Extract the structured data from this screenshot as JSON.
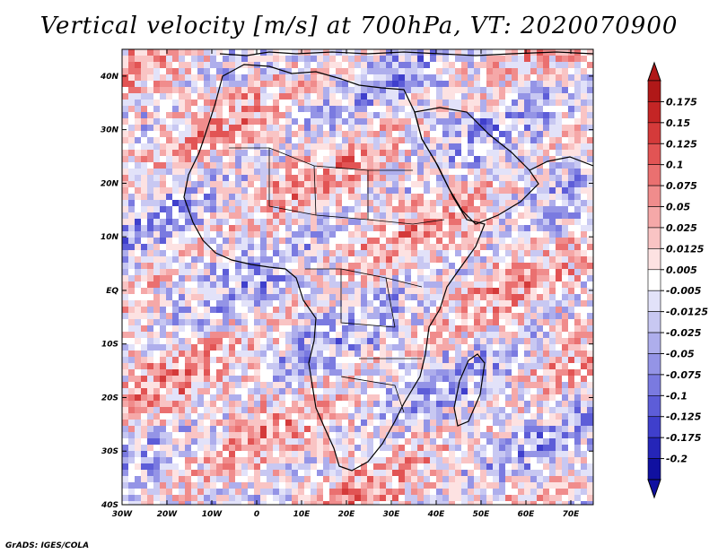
{
  "title": "Vertical velocity [m/s] at 700hPa, VT: 2020070900",
  "credit": "GrADS: IGES/COLA",
  "map": {
    "lon_ticks": [
      "30W",
      "20W",
      "10W",
      "0",
      "10E",
      "20E",
      "30E",
      "40E",
      "50E",
      "60E",
      "70E"
    ],
    "lat_ticks": [
      "40N",
      "30N",
      "20N",
      "10N",
      "EQ",
      "10S",
      "20S",
      "30S",
      "40S"
    ],
    "lon_range": [
      -30,
      75
    ],
    "lat_range": [
      -40,
      45
    ]
  },
  "colorbar": {
    "levels": [
      "0.175",
      "0.15",
      "0.125",
      "0.1",
      "0.075",
      "0.05",
      "0.025",
      "0.0125",
      "0.005",
      "-0.005",
      "-0.0125",
      "-0.025",
      "-0.05",
      "-0.075",
      "-0.1",
      "-0.125",
      "-0.175",
      "-0.2"
    ],
    "colors": [
      "#b01818",
      "#c42525",
      "#d43a3a",
      "#e25454",
      "#ea7070",
      "#f08c8c",
      "#f5a8a8",
      "#f9c4c4",
      "#fde2e2",
      "#ffffff",
      "#e2e2f9",
      "#c8c8f2",
      "#aeaeec",
      "#9494e6",
      "#7a7ae0",
      "#5d5dd8",
      "#3f3fcc",
      "#2525b8",
      "#1010a0"
    ]
  },
  "palette": {
    "positive": "#e06060",
    "negative": "#6a6ae0",
    "neutral": "#ffffff",
    "coast": "#000000"
  }
}
